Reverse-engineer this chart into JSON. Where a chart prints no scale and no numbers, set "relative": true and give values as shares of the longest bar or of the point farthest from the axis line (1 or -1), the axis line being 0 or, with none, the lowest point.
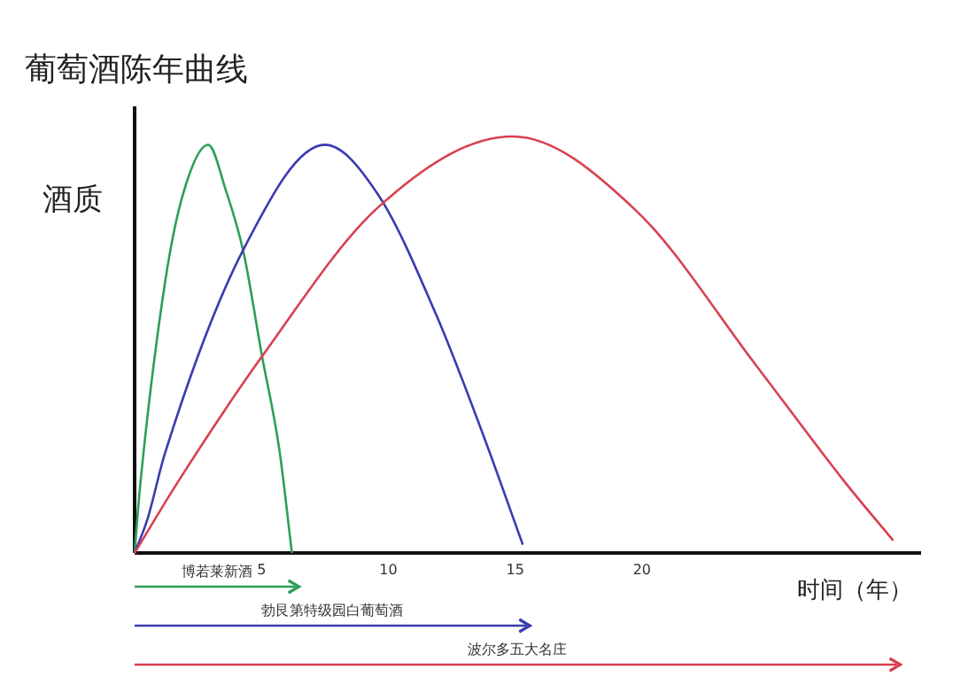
{
  "chart_data": {
    "type": "line",
    "title": "葡萄酒陈年曲线",
    "xlabel": "时间（年）",
    "ylabel": "酒质",
    "relative": true,
    "tick_labels": "x",
    "xlim": [
      0,
      31
    ],
    "xticks": [
      5,
      10,
      15,
      20
    ],
    "series": [
      {
        "color": "#2e9e5b",
        "x": [
          0,
          0.2,
          1.2,
          1.9,
          2.9,
          3.6,
          4.3,
          5.0,
          5.7,
          6.2
        ],
        "values": [
          0,
          0.15,
          0.65,
          0.86,
          0.98,
          0.87,
          0.72,
          0.48,
          0.25,
          0
        ]
      },
      {
        "color": "#3b3bb0",
        "x": [
          0,
          0.5,
          1.2,
          4.3,
          7.5,
          9.6,
          11.9,
          13.7,
          15.3
        ],
        "values": [
          0,
          0.08,
          0.24,
          0.73,
          0.98,
          0.86,
          0.57,
          0.29,
          0.02
        ]
      },
      {
        "color": "#d9404f",
        "x": [
          0,
          1.7,
          5.0,
          9.6,
          14.9,
          19.8,
          24.5,
          28.0,
          29.9
        ],
        "values": [
          0,
          0.17,
          0.47,
          0.83,
          1.0,
          0.82,
          0.45,
          0.17,
          0.03
        ]
      }
    ],
    "annotations": [
      "博若莱新酒",
      "勃艮第特级园白葡萄酒",
      "波尔多五大名庄"
    ]
  }
}
